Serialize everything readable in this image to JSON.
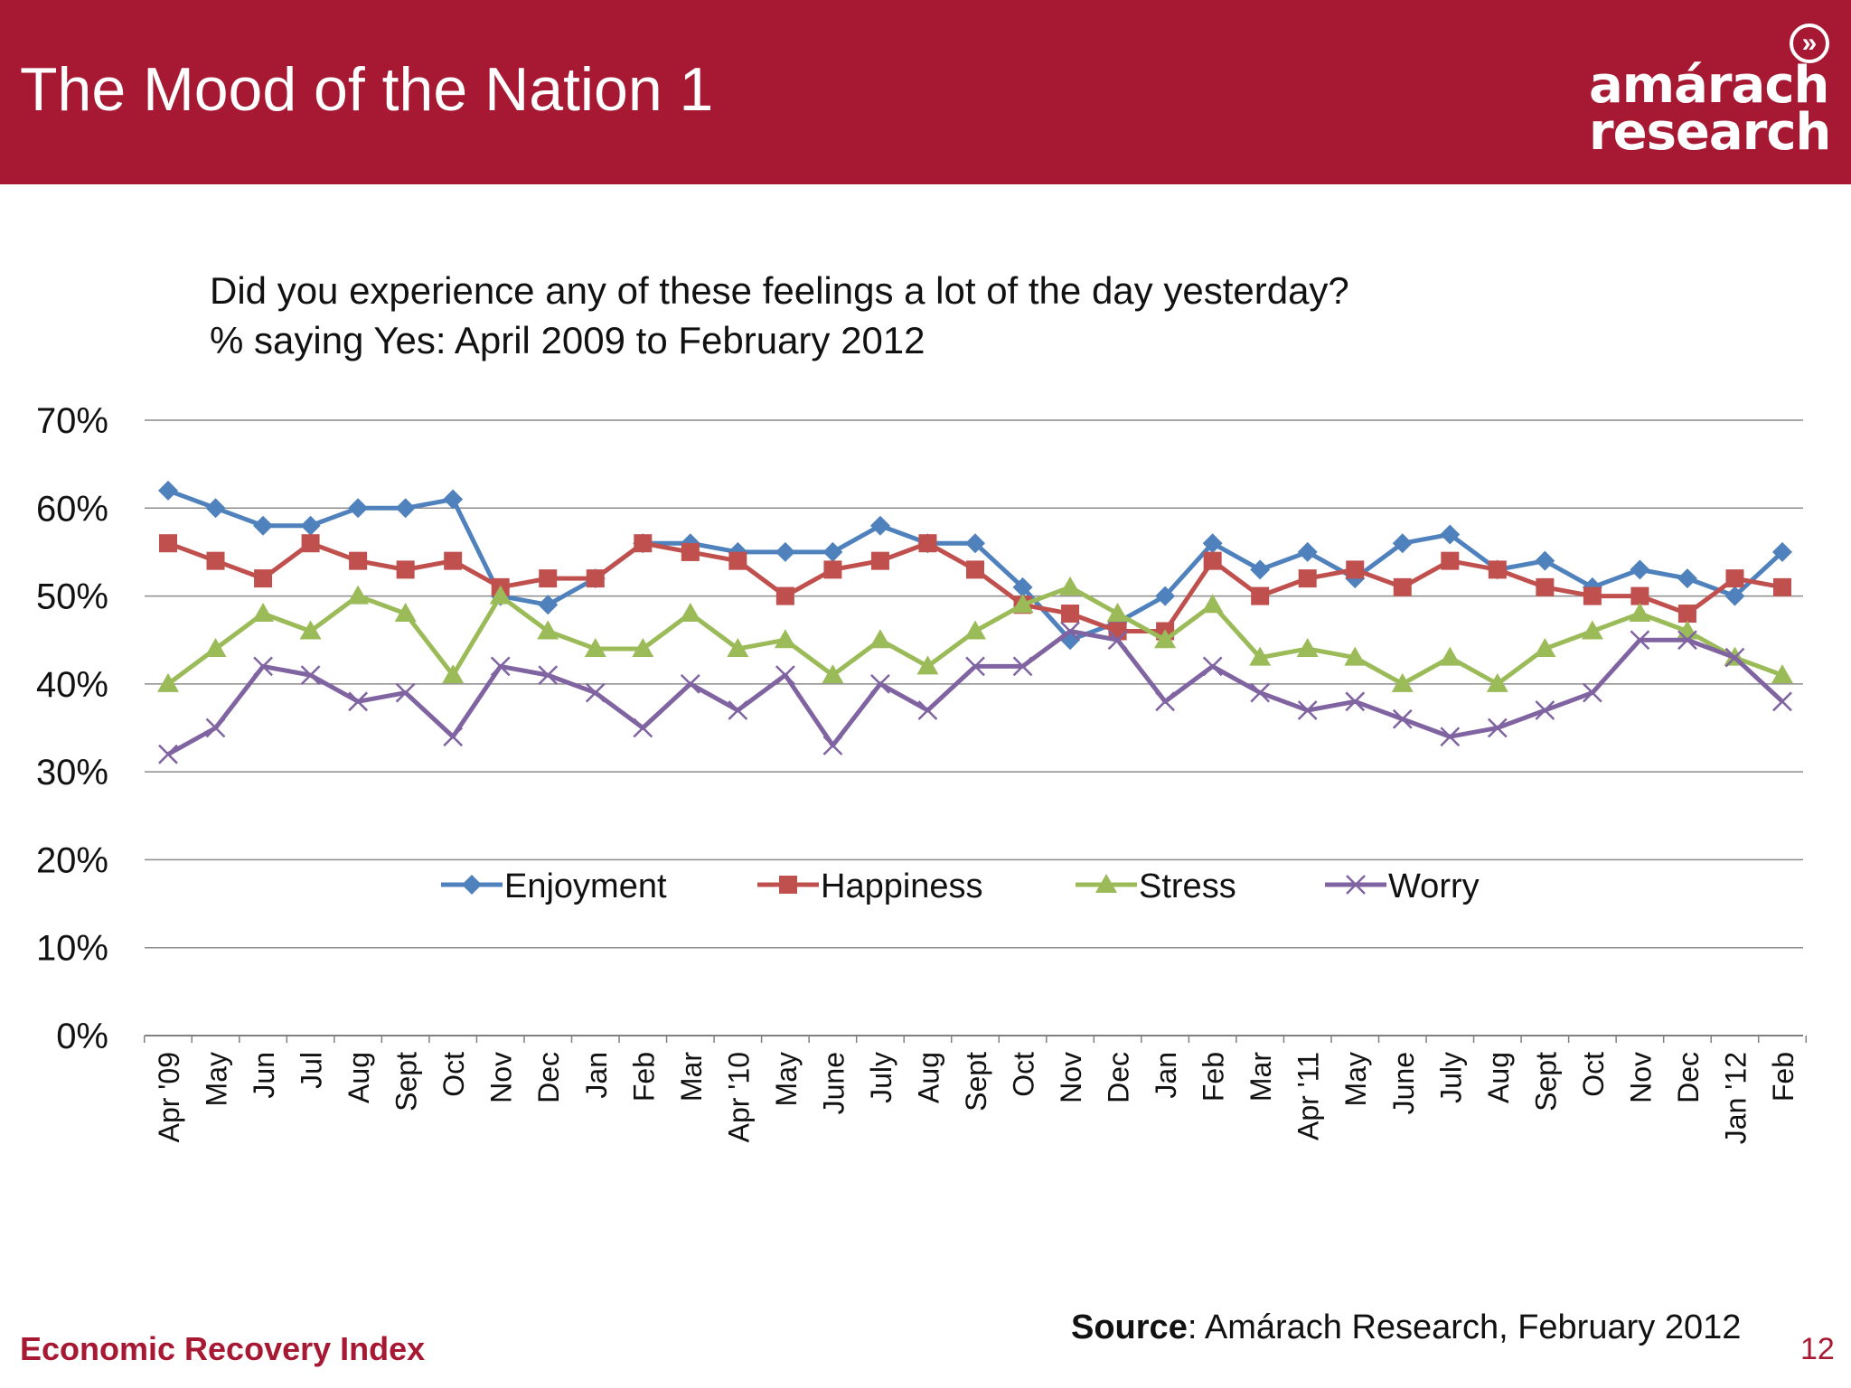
{
  "header": {
    "title": "The Mood of the Nation 1",
    "logo": {
      "line1": "amárach",
      "line2": "research",
      "icon": "chevron-circle-icon"
    },
    "background_color": "#a71932"
  },
  "question": {
    "line1": "Did you experience any of these feelings a lot of the day yesterday?",
    "line2": "% saying Yes: April 2009 to February 2012"
  },
  "chart_data": {
    "type": "line",
    "title": "",
    "xlabel": "",
    "ylabel": "",
    "ylim": [
      0,
      70
    ],
    "y_ticks": [
      "0%",
      "10%",
      "20%",
      "30%",
      "40%",
      "50%",
      "60%",
      "70%"
    ],
    "grid": true,
    "legend_position": "center",
    "categories": [
      "Apr '09",
      "May",
      "Jun",
      "Jul",
      "Aug",
      "Sept",
      "Oct",
      "Nov",
      "Dec",
      "Jan",
      "Feb",
      "Mar",
      "Apr '10",
      "May",
      "June",
      "July",
      "Aug",
      "Sept",
      "Oct",
      "Nov",
      "Dec",
      "Jan",
      "Feb",
      "Mar",
      "Apr '11",
      "May",
      "June",
      "July",
      "Aug",
      "Sept",
      "Oct",
      "Nov",
      "Dec",
      "Jan '12",
      "Feb"
    ],
    "series": [
      {
        "name": "Enjoyment",
        "color": "#4f81bd",
        "marker": "diamond",
        "values": [
          62,
          60,
          58,
          58,
          60,
          60,
          61,
          50,
          49,
          52,
          56,
          56,
          55,
          55,
          55,
          58,
          56,
          56,
          51,
          45,
          47,
          50,
          56,
          53,
          55,
          52,
          56,
          57,
          53,
          54,
          51,
          53,
          52,
          50,
          55
        ]
      },
      {
        "name": "Happiness",
        "color": "#c0504d",
        "marker": "square",
        "values": [
          56,
          54,
          52,
          56,
          54,
          53,
          54,
          51,
          52,
          52,
          56,
          55,
          54,
          50,
          53,
          54,
          56,
          53,
          49,
          48,
          46,
          46,
          54,
          50,
          52,
          53,
          51,
          54,
          53,
          51,
          50,
          50,
          48,
          52,
          51
        ]
      },
      {
        "name": "Stress",
        "color": "#9bbb59",
        "marker": "triangle",
        "values": [
          40,
          44,
          48,
          46,
          50,
          48,
          41,
          50,
          46,
          44,
          44,
          48,
          44,
          45,
          41,
          45,
          42,
          46,
          49,
          51,
          48,
          45,
          49,
          43,
          44,
          43,
          40,
          43,
          40,
          44,
          46,
          48,
          46,
          43,
          41
        ]
      },
      {
        "name": "Worry",
        "color": "#8064a2",
        "marker": "x",
        "values": [
          32,
          35,
          42,
          41,
          38,
          39,
          34,
          42,
          41,
          39,
          35,
          40,
          37,
          41,
          33,
          40,
          37,
          42,
          42,
          46,
          45,
          38,
          42,
          39,
          37,
          38,
          36,
          34,
          35,
          37,
          39,
          45,
          45,
          43,
          38
        ]
      }
    ]
  },
  "footer": {
    "left_label": "Economic Recovery Index",
    "source_label": "Source",
    "source_text": ": Amárach Research, February 2012",
    "page_number": "12"
  }
}
